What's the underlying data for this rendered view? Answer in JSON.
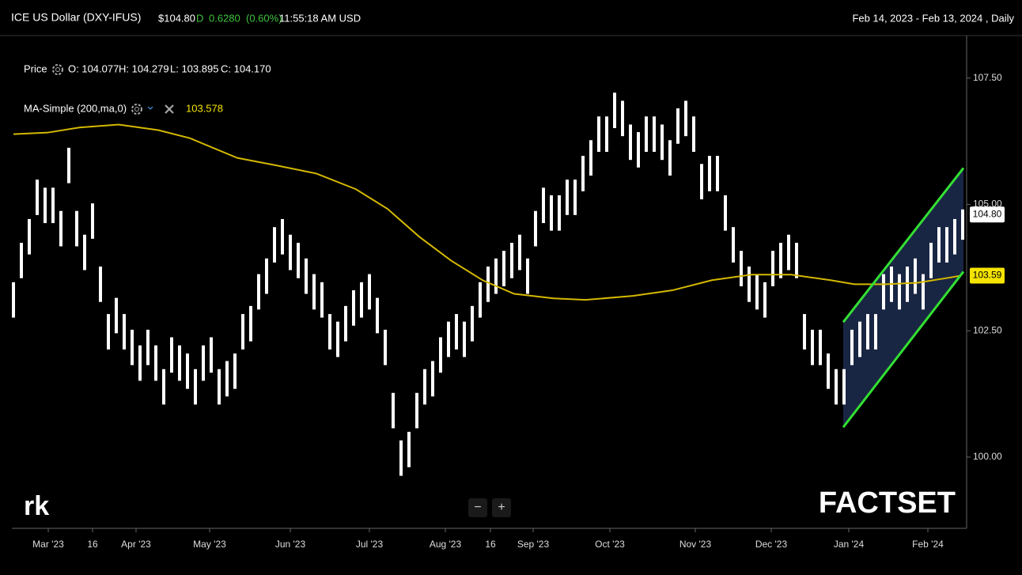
{
  "chart_data": {
    "type": "range_bar",
    "title": "ICE US Dollar (DXY-IFUS)",
    "header": {
      "price": "$104.80",
      "flag": "D",
      "change": "0.6280",
      "change_pct": "(0.60%)",
      "time": "11:55:18 AM USD",
      "range": "Feb 14, 2023 - Feb 13, 2024 , Daily"
    },
    "legend": {
      "price_label": "Price",
      "open": "O: 104.077",
      "high": "H: 104.279",
      "low": "L: 103.895",
      "close": "C: 104.170",
      "ma_label": "MA-Simple (200,ma,0)",
      "ma_value": "103.578"
    },
    "logos": {
      "left": "rk",
      "right": "FACTSET"
    },
    "zoom": [
      "−",
      "+"
    ],
    "xlim": [
      -0.2,
      120.5
    ],
    "ylim": [
      98.59,
      108.34
    ],
    "xticks": [
      {
        "value": 4.4,
        "label": "Mar '23"
      },
      {
        "value": 10,
        "label": "16"
      },
      {
        "value": 15.5,
        "label": "Apr '23"
      },
      {
        "value": 24.8,
        "label": "May '23"
      },
      {
        "value": 35,
        "label": "Jun '23"
      },
      {
        "value": 45,
        "label": "Jul '23"
      },
      {
        "value": 54.6,
        "label": "Aug '23"
      },
      {
        "value": 60.3,
        "label": "16"
      },
      {
        "value": 65.7,
        "label": "Sep '23"
      },
      {
        "value": 75.4,
        "label": "Oct '23"
      },
      {
        "value": 86.2,
        "label": "Nov '23"
      },
      {
        "value": 95.8,
        "label": "Dec '23"
      },
      {
        "value": 105.6,
        "label": "Jan '24"
      },
      {
        "value": 115.6,
        "label": "Feb '24"
      }
    ],
    "yticks": [
      {
        "value": 100,
        "label": "100.00"
      },
      {
        "value": 102.5,
        "label": "102.50"
      },
      {
        "value": 105,
        "label": "105.00"
      },
      {
        "value": 107.5,
        "label": "107.50"
      }
    ],
    "series": [
      {
        "name": "Price",
        "color": "#ffffff",
        "high": [
          103.46,
          104.24,
          104.71,
          105.49,
          105.33,
          105.33,
          104.87,
          106.12,
          104.87,
          104.4,
          105.02,
          103.77,
          102.83,
          103.15,
          102.83,
          102.52,
          102.21,
          102.52,
          102.21,
          101.74,
          102.37,
          102.21,
          102.05,
          101.74,
          102.21,
          102.37,
          101.74,
          101.9,
          102.05,
          102.83,
          102.99,
          103.62,
          103.93,
          104.55,
          104.71,
          104.4,
          104.24,
          103.93,
          103.62,
          103.46,
          102.83,
          102.68,
          102.99,
          103.3,
          103.46,
          103.62,
          103.15,
          102.52,
          101.27,
          100.33,
          100.5,
          101.27,
          101.74,
          101.9,
          102.37,
          102.68,
          102.83,
          102.68,
          102.99,
          103.46,
          103.77,
          103.93,
          104.08,
          104.24,
          104.4,
          103.93,
          104.87,
          105.33,
          105.18,
          105.18,
          105.49,
          105.49,
          105.96,
          106.27,
          106.74,
          106.74,
          107.21,
          107.05,
          106.58,
          106.43,
          106.74,
          106.74,
          106.58,
          106.27,
          106.9,
          107.05,
          106.74,
          105.8,
          105.96,
          105.96,
          105.18,
          104.55,
          104.08,
          103.77,
          103.62,
          103.46,
          104.08,
          104.24,
          104.4,
          104.24,
          102.83,
          102.52,
          102.52,
          102.05,
          101.74,
          101.74,
          102.52,
          102.68,
          102.83,
          102.83,
          103.62,
          103.77,
          103.62,
          103.77,
          103.93,
          103.62,
          104.24,
          104.55,
          104.55,
          104.71,
          104.9
        ],
        "low": [
          102.76,
          103.54,
          104.01,
          104.79,
          104.63,
          104.63,
          104.17,
          105.42,
          104.17,
          103.7,
          104.32,
          103.07,
          102.13,
          102.45,
          102.13,
          101.82,
          101.51,
          101.82,
          101.51,
          101.04,
          101.67,
          101.51,
          101.35,
          101.04,
          101.51,
          101.67,
          101.04,
          101.2,
          101.35,
          102.13,
          102.29,
          102.92,
          103.23,
          103.85,
          104.01,
          103.7,
          103.54,
          103.23,
          102.92,
          102.76,
          102.13,
          101.98,
          102.29,
          102.6,
          102.76,
          102.92,
          102.45,
          101.82,
          100.57,
          99.63,
          99.8,
          100.57,
          101.04,
          101.2,
          101.67,
          101.98,
          102.13,
          101.98,
          102.29,
          102.76,
          103.07,
          103.23,
          103.38,
          103.54,
          103.7,
          103.23,
          104.17,
          104.63,
          104.48,
          104.48,
          104.79,
          104.79,
          105.26,
          105.57,
          106.04,
          106.04,
          106.51,
          106.35,
          105.88,
          105.73,
          106.04,
          106.04,
          105.88,
          105.57,
          106.2,
          106.35,
          106.04,
          105.1,
          105.26,
          105.26,
          104.48,
          103.85,
          103.38,
          103.07,
          102.92,
          102.76,
          103.38,
          103.54,
          103.7,
          103.54,
          102.13,
          101.82,
          101.82,
          101.35,
          101.04,
          101.04,
          101.82,
          101.98,
          102.13,
          102.13,
          102.92,
          103.07,
          102.92,
          103.07,
          103.23,
          102.92,
          103.54,
          103.85,
          103.85,
          104.01,
          104.3
        ]
      },
      {
        "name": "MA-Simple (200,ma,0)",
        "color": "#d4b800",
        "x": [
          0,
          4.3,
          8.3,
          13.3,
          18.3,
          22.3,
          28.3,
          33.3,
          38.3,
          43.3,
          47.3,
          51.3,
          55.3,
          59.3,
          63.3,
          68.3,
          72.3,
          78.3,
          83.3,
          88.3,
          93.3,
          98.3,
          103.3,
          106.3,
          110.3,
          114.3,
          118.3,
          119.8
        ],
        "values": [
          106.39,
          106.42,
          106.52,
          106.58,
          106.47,
          106.31,
          105.92,
          105.77,
          105.61,
          105.3,
          104.91,
          104.36,
          103.89,
          103.5,
          103.23,
          103.14,
          103.11,
          103.19,
          103.3,
          103.5,
          103.61,
          103.61,
          103.5,
          103.42,
          103.42,
          103.45,
          103.55,
          103.59
        ]
      }
    ],
    "channel": {
      "color": "#33e033",
      "fill": "#1c2a4a",
      "x": [
        104.9,
        120.1
      ],
      "upper": [
        102.67,
        105.72
      ],
      "lower": [
        100.59,
        103.67
      ]
    },
    "price_tags": [
      {
        "value": 104.8,
        "label": "104.80",
        "color": "#ffffff"
      },
      {
        "value": 103.59,
        "label": "103.59",
        "color": "#f5e400"
      }
    ]
  }
}
